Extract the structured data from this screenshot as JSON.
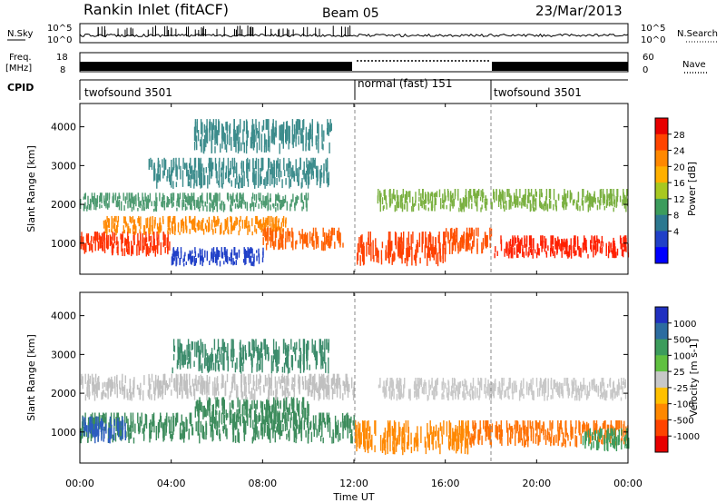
{
  "header": {
    "radar": "Rankin Inlet (fitACF)",
    "beam": "Beam 05",
    "date": "23/Mar/2013"
  },
  "noise_panel": {
    "left_label": "N.Sky",
    "right_label": "N.Search",
    "left_ticks": [
      "10^5",
      "10^0"
    ],
    "right_ticks": [
      "10^5",
      "10^0"
    ]
  },
  "freq_panel": {
    "left_label_line1": "Freq.",
    "left_label_line2": "[MHz]",
    "right_label": "Nave",
    "left_ticks": [
      "18",
      "8"
    ],
    "right_ticks": [
      "60",
      "0"
    ]
  },
  "cpid_panel": {
    "label": "CPID",
    "segments": [
      {
        "name": "twofsound 3501",
        "start_hour": 0,
        "end_hour": 12
      },
      {
        "name": "normal (fast) 151",
        "start_hour": 12,
        "end_hour": 18
      },
      {
        "name": "twofsound 3501",
        "start_hour": 18,
        "end_hour": 24
      }
    ]
  },
  "x_axis": {
    "label": "Time UT",
    "ticks": [
      "00:00",
      "04:00",
      "08:00",
      "12:00",
      "16:00",
      "20:00",
      "00:00"
    ],
    "tick_hours": [
      0,
      4,
      8,
      12,
      16,
      20,
      24
    ],
    "range_hours": [
      0,
      24
    ]
  },
  "chart_data": [
    {
      "type": "heatmap",
      "name": "power",
      "ylabel": "Slant Range [km]",
      "ylim": [
        200,
        4600
      ],
      "yticks": [
        1000,
        2000,
        3000,
        4000
      ],
      "colorbar": {
        "label": "Power [dB]",
        "ticks": [
          "28",
          "24",
          "20",
          "16",
          "12",
          "8",
          "4"
        ],
        "colors": [
          "#e80000",
          "#ff4400",
          "#ff8800",
          "#ffb000",
          "#a8c820",
          "#3c9c5c",
          "#2c7890",
          "#2040c8",
          "#0000ff"
        ]
      },
      "bands": [
        {
          "h0": 0,
          "h1": 4,
          "r0": 650,
          "r1": 1300,
          "color": "#ff3000"
        },
        {
          "h0": 1,
          "h1": 9,
          "r0": 1200,
          "r1": 1700,
          "color": "#ff8800"
        },
        {
          "h0": 0,
          "h1": 10,
          "r0": 1800,
          "r1": 2300,
          "color": "#4c9a70"
        },
        {
          "h0": 3,
          "h1": 11,
          "r0": 2400,
          "r1": 3200,
          "color": "#3c8c8c"
        },
        {
          "h0": 5,
          "h1": 11,
          "r0": 3300,
          "r1": 4200,
          "color": "#3c8c8c"
        },
        {
          "h0": 8,
          "h1": 11.5,
          "r0": 800,
          "r1": 1400,
          "color": "#ff6000"
        },
        {
          "h0": 12,
          "h1": 16,
          "r0": 400,
          "r1": 1300,
          "color": "#ff4000"
        },
        {
          "h0": 16,
          "h1": 18,
          "r0": 700,
          "r1": 1400,
          "color": "#ff5000"
        },
        {
          "h0": 18,
          "h1": 24,
          "r0": 600,
          "r1": 1200,
          "color": "#ff2000"
        },
        {
          "h0": 13,
          "h1": 24,
          "r0": 1800,
          "r1": 2400,
          "color": "#7ab040"
        },
        {
          "h0": 4,
          "h1": 8,
          "r0": 400,
          "r1": 900,
          "color": "#2040c8"
        }
      ]
    },
    {
      "type": "heatmap",
      "name": "velocity",
      "ylabel": "Slant Range [km]",
      "ylim": [
        200,
        4600
      ],
      "yticks": [
        1000,
        2000,
        3000,
        4000
      ],
      "colorbar": {
        "label": "Velocity [m s-1]",
        "ticks": [
          "1000",
          "500",
          "100",
          "25",
          "-25",
          "-100",
          "-500",
          "-1000"
        ],
        "colors": [
          "#2030c0",
          "#2c6ca0",
          "#3c9c5c",
          "#60c040",
          "#c8c8c8",
          "#ffc000",
          "#ff8800",
          "#ff4400",
          "#e80000"
        ]
      },
      "bands": [
        {
          "h0": 0,
          "h1": 12,
          "r0": 700,
          "r1": 1500,
          "color": "#3c8c5c"
        },
        {
          "h0": 5,
          "h1": 10,
          "r0": 1200,
          "r1": 1900,
          "color": "#3c8c5c"
        },
        {
          "h0": 0,
          "h1": 12,
          "r0": 1800,
          "r1": 2500,
          "color": "#c0c0c0"
        },
        {
          "h0": 4,
          "h1": 11,
          "r0": 2500,
          "r1": 3400,
          "color": "#3c8c6c"
        },
        {
          "h0": 0,
          "h1": 2,
          "r0": 700,
          "r1": 1400,
          "color": "#2c5cc0"
        },
        {
          "h0": 12,
          "h1": 17,
          "r0": 400,
          "r1": 1300,
          "color": "#ff8800"
        },
        {
          "h0": 17,
          "h1": 24,
          "r0": 600,
          "r1": 1300,
          "color": "#ff7000"
        },
        {
          "h0": 13,
          "h1": 24,
          "r0": 1800,
          "r1": 2400,
          "color": "#c8c8c8"
        },
        {
          "h0": 22,
          "h1": 24,
          "r0": 500,
          "r1": 1100,
          "color": "#3c9c5c"
        }
      ]
    }
  ]
}
